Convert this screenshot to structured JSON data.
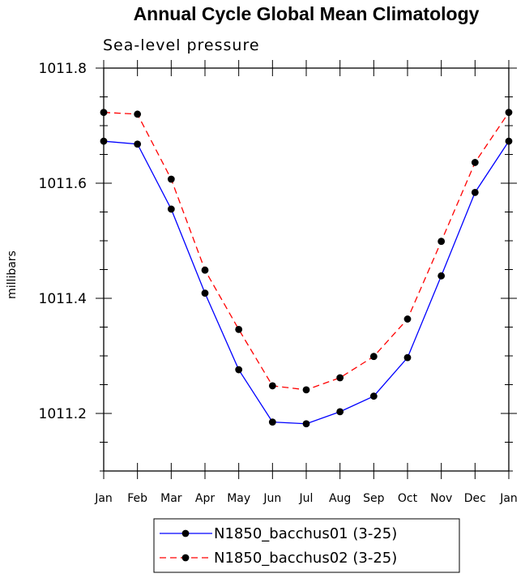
{
  "chart_data": {
    "type": "line",
    "title": "Annual Cycle Global Mean Climatology",
    "subtitle": "Sea-level pressure",
    "xlabel": "",
    "ylabel": "millibars",
    "categories": [
      "Jan",
      "Feb",
      "Mar",
      "Apr",
      "May",
      "Jun",
      "Jul",
      "Aug",
      "Sep",
      "Oct",
      "Nov",
      "Dec",
      "Jan"
    ],
    "ylim": [
      1011.1,
      1011.8
    ],
    "yticks": [
      1011.2,
      1011.4,
      1011.6,
      1011.8
    ],
    "ytick_labels": [
      "1011.2",
      "1011.4",
      "1011.6",
      "1011.8"
    ],
    "grid": false,
    "legend_position": "bottom-center",
    "series": [
      {
        "name": "N1850_bacchus01 (3-25)",
        "color": "#0000ff",
        "dash": "solid",
        "marker": "filled-circle",
        "values": [
          1011.673,
          1011.668,
          1011.555,
          1011.409,
          1011.276,
          1011.185,
          1011.182,
          1011.203,
          1011.23,
          1011.297,
          1011.439,
          1011.584,
          1011.673
        ]
      },
      {
        "name": "N1850_bacchus02 (3-25)",
        "color": "#ff0000",
        "dash": "dashed",
        "marker": "filled-circle",
        "values": [
          1011.723,
          1011.72,
          1011.607,
          1011.449,
          1011.346,
          1011.248,
          1011.241,
          1011.262,
          1011.299,
          1011.364,
          1011.499,
          1011.636,
          1011.723
        ]
      }
    ]
  }
}
